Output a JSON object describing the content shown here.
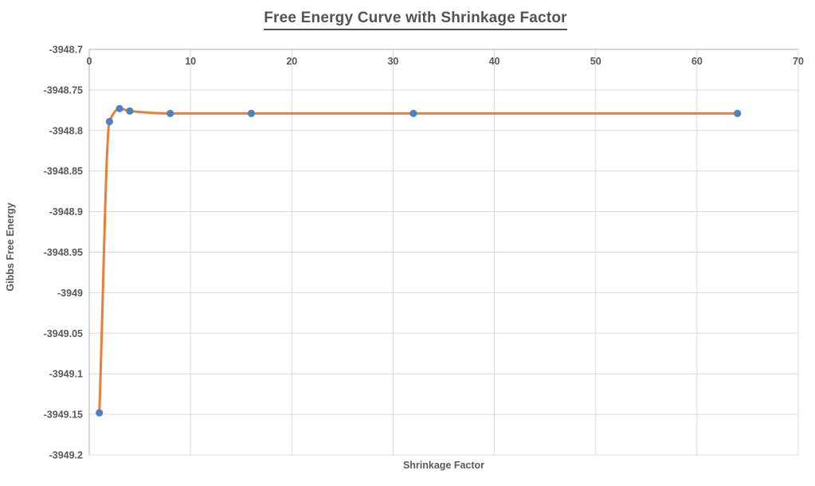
{
  "chart": {
    "title": "Free Energy Curve with Shrinkage Factor",
    "x_axis_title": "Shrinkage Factor",
    "y_axis_title": "Gibbs Free Energy"
  },
  "chart_data": {
    "type": "line",
    "title": "Free Energy Curve with Shrinkage Factor",
    "xlabel": "Shrinkage Factor",
    "ylabel": "Gibbs Free Energy",
    "x": [
      1,
      2,
      3,
      4,
      8,
      16,
      32,
      64
    ],
    "y": [
      -3949.148,
      -3948.789,
      -3948.773,
      -3948.776,
      -3948.779,
      -3948.779,
      -3948.779,
      -3948.779
    ],
    "xlim": [
      0,
      70
    ],
    "ylim": [
      -3949.2,
      -3948.7
    ],
    "x_ticks": [
      0,
      10,
      20,
      30,
      40,
      50,
      60,
      70
    ],
    "y_ticks": [
      -3948.7,
      -3948.75,
      -3948.8,
      -3948.85,
      -3948.9,
      -3948.95,
      -3949,
      -3949.05,
      -3949.1,
      -3949.15,
      -3949.2
    ],
    "grid": true,
    "legend": "none",
    "smooth_line": true,
    "line_color": "#ED7D31",
    "marker_color": "#4F81BD",
    "gridline_color": "#D9D9D9",
    "axis_line_color": "#BFBFBF",
    "tick_label_color": "#595959"
  }
}
